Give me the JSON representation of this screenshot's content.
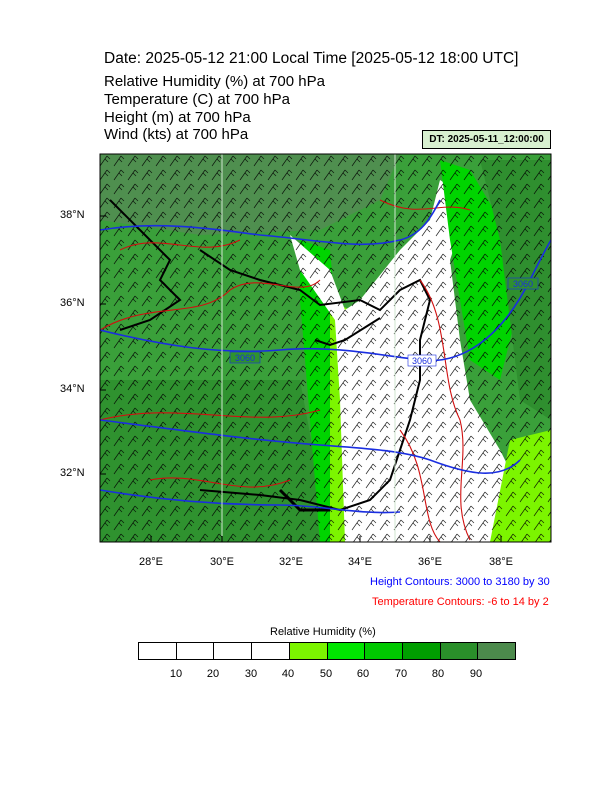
{
  "header": {
    "title": "Date: 2025-05-12  21:00 Local Time [2025-05-12  18:00 UTC]",
    "lines": [
      "Relative Humidity   (%)     at   700 hPa",
      "Temperature   (C)     at   700 hPa",
      "Height   (m)     at   700 hPa",
      "Wind   (kts)     at   700 hPa"
    ],
    "dt_badge": "DT: 2025-05-11_12:00:00"
  },
  "map": {
    "lat_labels": [
      "38°N",
      "36°N",
      "34°N",
      "32°N"
    ],
    "lon_labels": [
      "28°E",
      "30°E",
      "32°E",
      "34°E",
      "36°E",
      "38°E"
    ],
    "height_contour_labels": [
      "3060",
      "3060",
      "3060"
    ],
    "colors": {
      "height_contour": "#1a2ee0",
      "temperature_contour": "#d01010",
      "coastline": "#000000",
      "wind_barb": "#000000"
    }
  },
  "notes": {
    "height": "Height Contours: 3000 to 3180 by 30",
    "temperature": "Temperature Contours: -6 to 14 by 2",
    "height_color": "#0000ff",
    "temperature_color": "#ff0000"
  },
  "colorbar": {
    "title": "Relative Humidity  (%)",
    "labels": [
      "10",
      "20",
      "30",
      "40",
      "50",
      "60",
      "70",
      "80",
      "90"
    ],
    "bin_colors": [
      "#ffffff",
      "#ffffff",
      "#ffffff",
      "#ffffff",
      "#7cf500",
      "#00e600",
      "#00c800",
      "#009e00",
      "#2a8f2a",
      "#4c8a4c"
    ]
  }
}
